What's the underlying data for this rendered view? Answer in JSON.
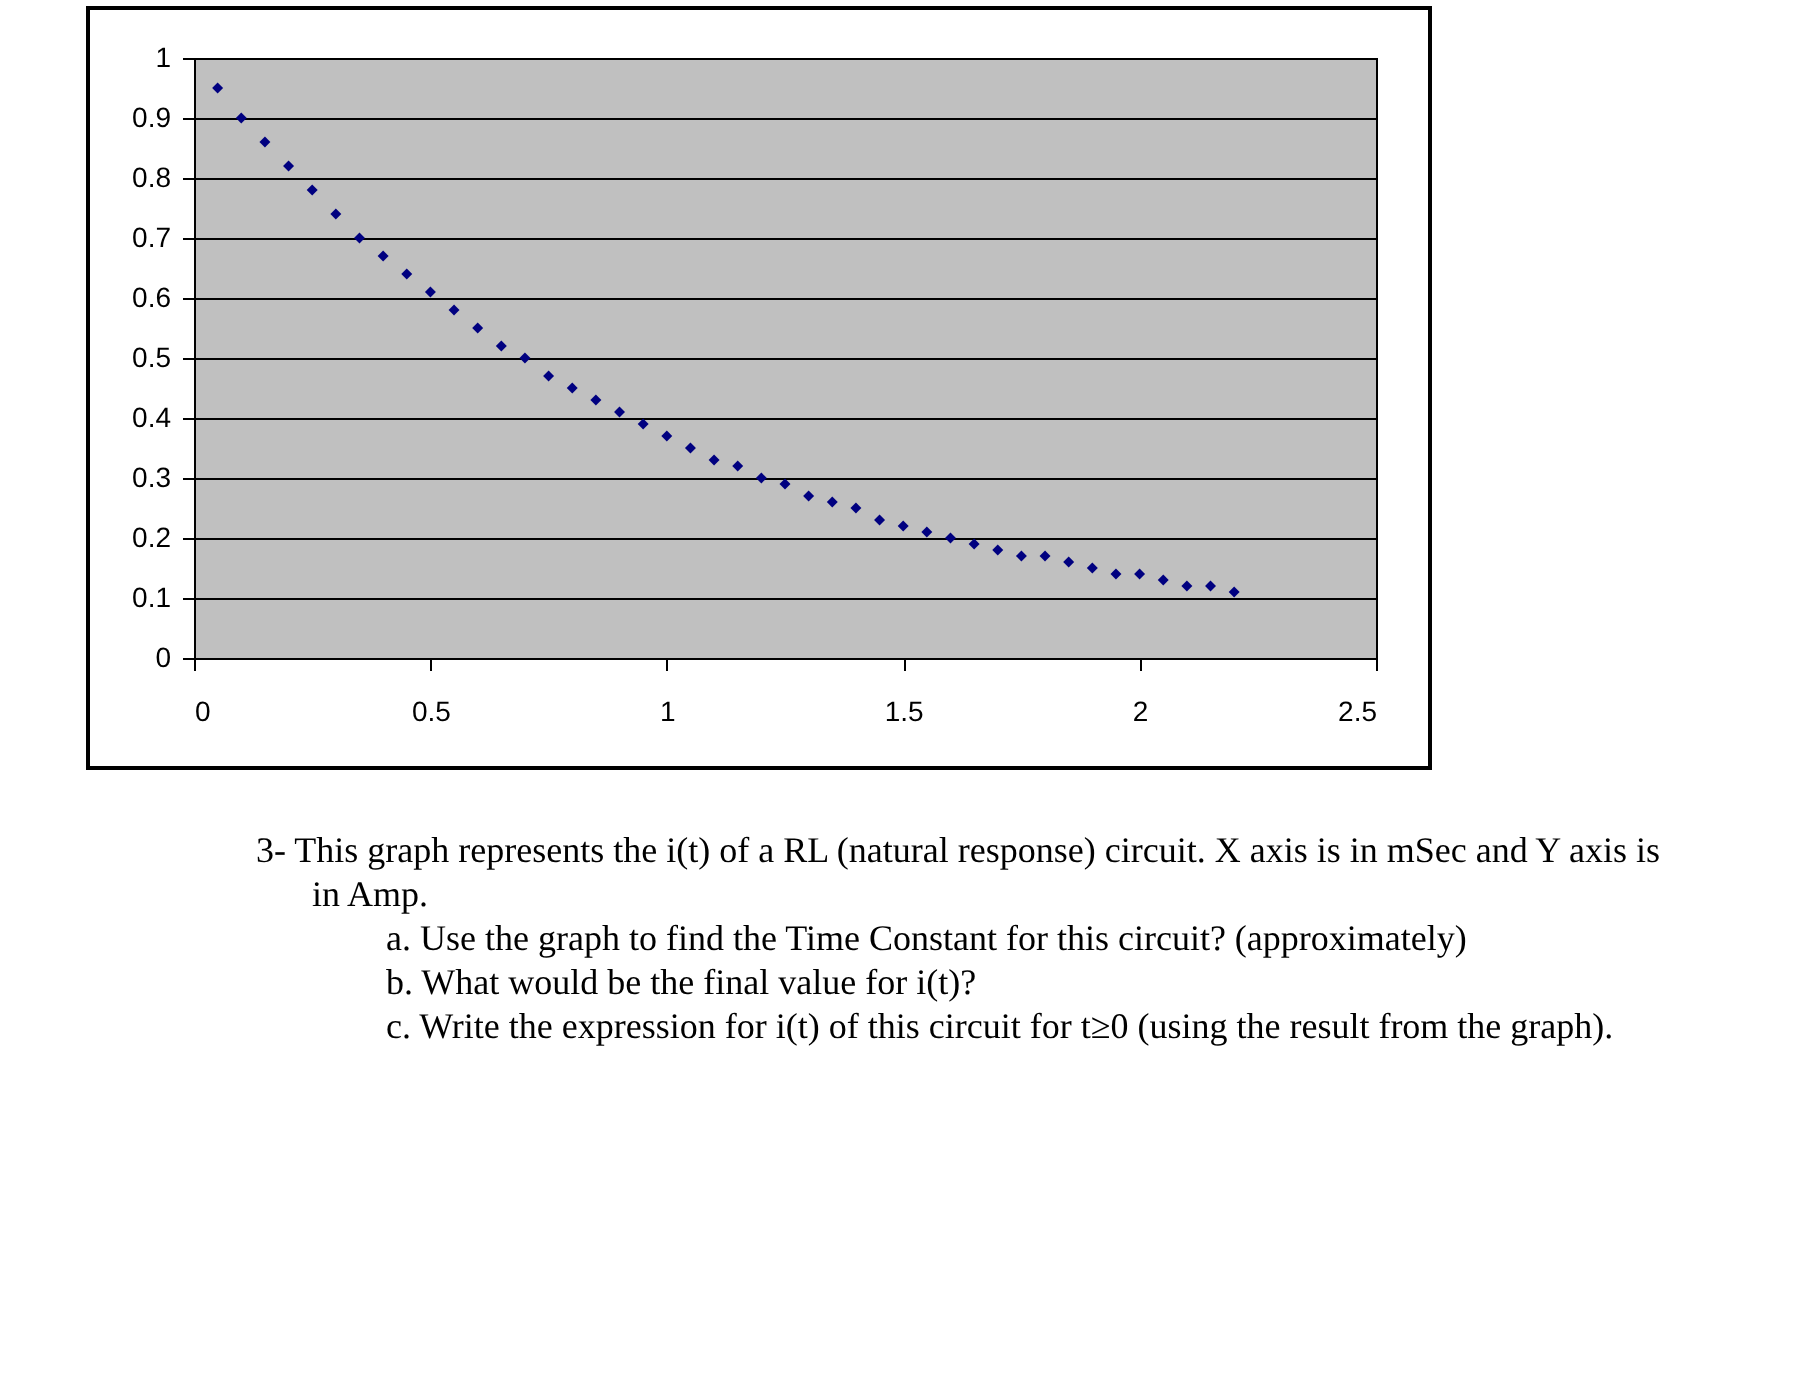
{
  "chart_data": {
    "type": "scatter",
    "x": [
      0.05,
      0.1,
      0.15,
      0.2,
      0.25,
      0.3,
      0.35,
      0.4,
      0.45,
      0.5,
      0.55,
      0.6,
      0.65,
      0.7,
      0.75,
      0.8,
      0.85,
      0.9,
      0.95,
      1.0,
      1.05,
      1.1,
      1.15,
      1.2,
      1.25,
      1.3,
      1.35,
      1.4,
      1.45,
      1.5,
      1.55,
      1.6,
      1.65,
      1.7,
      1.75,
      1.8,
      1.85,
      1.9,
      1.95,
      2.0,
      2.05,
      2.1,
      2.15,
      2.2
    ],
    "values": [
      0.95,
      0.9,
      0.86,
      0.82,
      0.78,
      0.74,
      0.7,
      0.67,
      0.64,
      0.61,
      0.58,
      0.55,
      0.52,
      0.5,
      0.47,
      0.45,
      0.43,
      0.41,
      0.39,
      0.37,
      0.35,
      0.33,
      0.32,
      0.3,
      0.29,
      0.27,
      0.26,
      0.25,
      0.23,
      0.22,
      0.21,
      0.2,
      0.19,
      0.18,
      0.17,
      0.17,
      0.16,
      0.15,
      0.14,
      0.14,
      0.13,
      0.12,
      0.12,
      0.11
    ],
    "color": "#000080",
    "marker": "diamond",
    "xlim": [
      0,
      2.5
    ],
    "xticks": [
      0,
      0.5,
      1,
      1.5,
      2,
      2.5
    ],
    "ylim": [
      0,
      1
    ],
    "yticks": [
      0,
      0.1,
      0.2,
      0.3,
      0.4,
      0.5,
      0.6,
      0.7,
      0.8,
      0.9,
      1
    ],
    "grid": "y",
    "annotations": [
      "3- This graph represents the i(t) of a RL (natural response) circuit. X axis is in mSec and Y axis is in Amp.",
      "a. Use the graph to find the Time Constant for this circuit? (approximately)",
      "b. What would be the final value for i(t)?",
      "c. Write the expression for i(t) of this circuit for t≥0 (using the result from the graph)."
    ]
  }
}
